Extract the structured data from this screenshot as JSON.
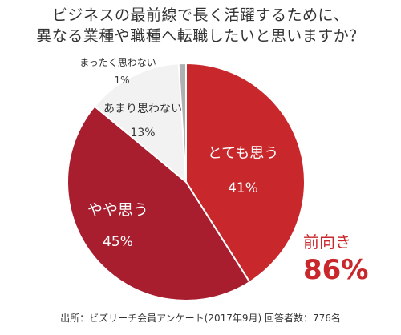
{
  "title_lines": [
    "ビジネスの最前線で長く活躍するために、",
    "異なる業種や職種へ転職したいと思いますか？"
  ],
  "chart_data": {
    "type": "pie",
    "slices": [
      {
        "label": "とても思う",
        "value": 41,
        "display": "41%",
        "color": "#c8282c"
      },
      {
        "label": "やや思う",
        "value": 45,
        "display": "45%",
        "color": "#a81e2e"
      },
      {
        "label": "あまり思わない",
        "value": 13,
        "display": "13%",
        "color": "#f2f2f2"
      },
      {
        "label": "まったく思わない",
        "value": 1,
        "display": "1%",
        "color": "#b0b0b0"
      }
    ]
  },
  "summary": {
    "label": "前向き",
    "value": "86%"
  },
  "source": "出所：ビズリーチ会員アンケート(2017年9月) 回答者数：776名"
}
